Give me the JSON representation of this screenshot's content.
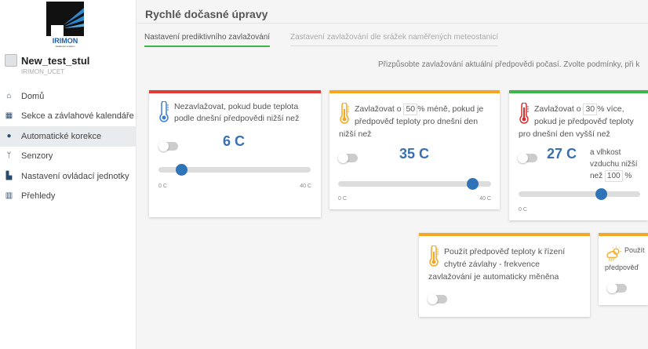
{
  "brand": {
    "logo_text": "IRIMON",
    "logo_sub": "závlahové systémy"
  },
  "account": {
    "name": "New_test_stul",
    "sub": "IRIMON_UCET"
  },
  "nav": [
    {
      "label": "Domů",
      "icon": "home-icon"
    },
    {
      "label": "Sekce a závlahové kalendáře",
      "icon": "grid-icon"
    },
    {
      "label": "Automatické korekce",
      "icon": "toggle-icon",
      "active": true
    },
    {
      "label": "Senzory",
      "icon": "antenna-icon"
    },
    {
      "label": "Nastavení ovládací jednotky",
      "icon": "controller-icon"
    },
    {
      "label": "Přehledy",
      "icon": "chart-icon"
    }
  ],
  "page": {
    "title": "Rychlé dočasné úpravy",
    "tabs": [
      "Nastavení prediktivního zavlažování",
      "Zastavení zavlažování dle srážek naměřených meteostanicí"
    ],
    "intro": "Přizpůsobte zavlažování aktuální předpovědi počasí. Zvolte podmínky, při k"
  },
  "cards": [
    {
      "color": "#e53935",
      "icon_color": "#3a7bd5",
      "text": "Nezavlažovat, pokud bude teplota podle dnešní předpovědi nižší než",
      "value": "6 C",
      "slider": 6,
      "min": "0 C",
      "max": "40 C",
      "enabled": false
    },
    {
      "color": "#f5a623",
      "icon_color": "#f5a623",
      "text_a": "Zavlažovat o",
      "percent": "50",
      "text_b": "% méně, pokud je předpověď teploty pro dnešní den nižší než",
      "value": "35 C",
      "slider": 35,
      "min": "0 C",
      "max": "40 C",
      "enabled": false
    },
    {
      "color": "#3cb54a",
      "icon_color": "#d32f2f",
      "text_a": "Zavlažovat o",
      "percent": "30",
      "text_b": "% více, pokud je předpověď teploty pro dnešní den vyšší než",
      "value": "27 C",
      "hum_a": "a vlhkost vzduchu nižší než",
      "humidity": "100",
      "hum_b": "%",
      "slider": 27,
      "min": "0 C",
      "enabled": false
    },
    {
      "color": "#f5a623",
      "icon_color": "#f5a623",
      "text": "Použít předpověď teploty k řízení chytré závlahy - frekvence zavlažování je automaticky měněna",
      "enabled": false
    },
    {
      "color": "#f5a623",
      "icon_color": "#f5a623",
      "text": "Použít předpověď",
      "enabled": false
    }
  ]
}
